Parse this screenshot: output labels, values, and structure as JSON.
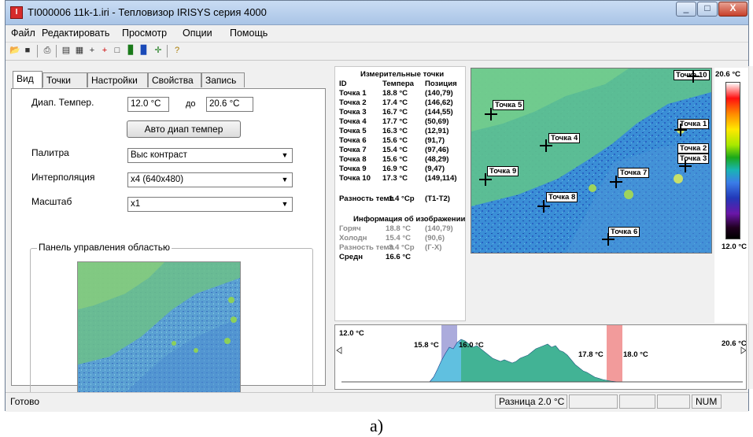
{
  "window": {
    "title": "TI000006 11k-1.iri - Тепловизор IRISYS серия 4000",
    "icon": "irisys-app-icon",
    "controls": [
      "minimize",
      "maximize",
      "close"
    ]
  },
  "menu": [
    "Файл",
    "Редактировать",
    "Просмотр",
    "Опции",
    "Помощь"
  ],
  "toolbar_icons": [
    "open-icon",
    "save-icon",
    "print-icon",
    "properties-icon",
    "report-icon",
    "add-point-icon",
    "add-point2-icon",
    "area-icon",
    "histogram-icon",
    "chart-icon",
    "crosshair-icon",
    "help-icon"
  ],
  "tabs": [
    "Вид",
    "Точки",
    "Настройки",
    "Свойства",
    "Запись"
  ],
  "view": {
    "temp_range_label": "Диап. Темпер.",
    "temp_from": "12.0 °C",
    "to_label": "до",
    "temp_to": "20.6 °C",
    "auto_button": "Авто диап темпер",
    "palette_label": "Палитра",
    "palette_value": "Выс контраст",
    "interp_label": "Интерполяция",
    "interp_value": "x4 (640x480)",
    "scale_label": "Масштаб",
    "scale_value": "x1",
    "region_panel": "Панель управления областью"
  },
  "measure": {
    "title": "Измерительные точки",
    "headers": [
      "ID",
      "Темпера",
      "Позиция"
    ],
    "points": [
      {
        "id": "Точка 1",
        "t": "18.8 °C",
        "pos": "(140,79)"
      },
      {
        "id": "Точка 2",
        "t": "17.4 °C",
        "pos": "(146,62)"
      },
      {
        "id": "Точка 3",
        "t": "16.7 °C",
        "pos": "(144,55)"
      },
      {
        "id": "Точка 4",
        "t": "17.7 °C",
        "pos": "(50,69)"
      },
      {
        "id": "Точка 5",
        "t": "16.3 °C",
        "pos": "(12,91)"
      },
      {
        "id": "Точка 6",
        "t": "15.6 °C",
        "pos": "(91,7)"
      },
      {
        "id": "Точка 7",
        "t": "15.4 °C",
        "pos": "(97,46)"
      },
      {
        "id": "Точка 8",
        "t": "15.6 °C",
        "pos": "(48,29)"
      },
      {
        "id": "Точка 9",
        "t": "16.9 °C",
        "pos": "(9,47)"
      },
      {
        "id": "Точка 10",
        "t": "17.3 °C",
        "pos": "(149,114)"
      }
    ],
    "diff_label": "Разность темп",
    "diff_value": "1.4 °Cр",
    "diff_pair": "(T1-T2)",
    "info_title": "Информация об изображении",
    "info": [
      {
        "k": "Горяч",
        "v": "18.8 °C",
        "p": "(140,79)"
      },
      {
        "k": "Холодн",
        "v": "15.4 °C",
        "p": "(90,6)"
      },
      {
        "k": "Разность темп",
        "v": "3.4 °Cр",
        "p": "(Г-Х)"
      }
    ],
    "avg_label": "Средн",
    "avg_value": "16.6 °C"
  },
  "thermo_labels": [
    "Точка 10",
    "Точка 5",
    "Точка 1",
    "Точка 4",
    "Точка 2",
    "Точка 3",
    "Точка 9",
    "Точка 7",
    "Точка 8",
    "Точка 6"
  ],
  "scale": {
    "max": "20.6 °C",
    "min": "12.0 °C"
  },
  "histogram": {
    "left": "12.0 °C",
    "right": "20.6 °C",
    "m1": "15.8 °C",
    "m2": "16.0 °C",
    "m3": "17.8 °C",
    "m4": "18.0 °C"
  },
  "status": {
    "ready": "Готово",
    "diff": "Разница 2.0 °C",
    "num": "NUM"
  },
  "caption": "а)"
}
